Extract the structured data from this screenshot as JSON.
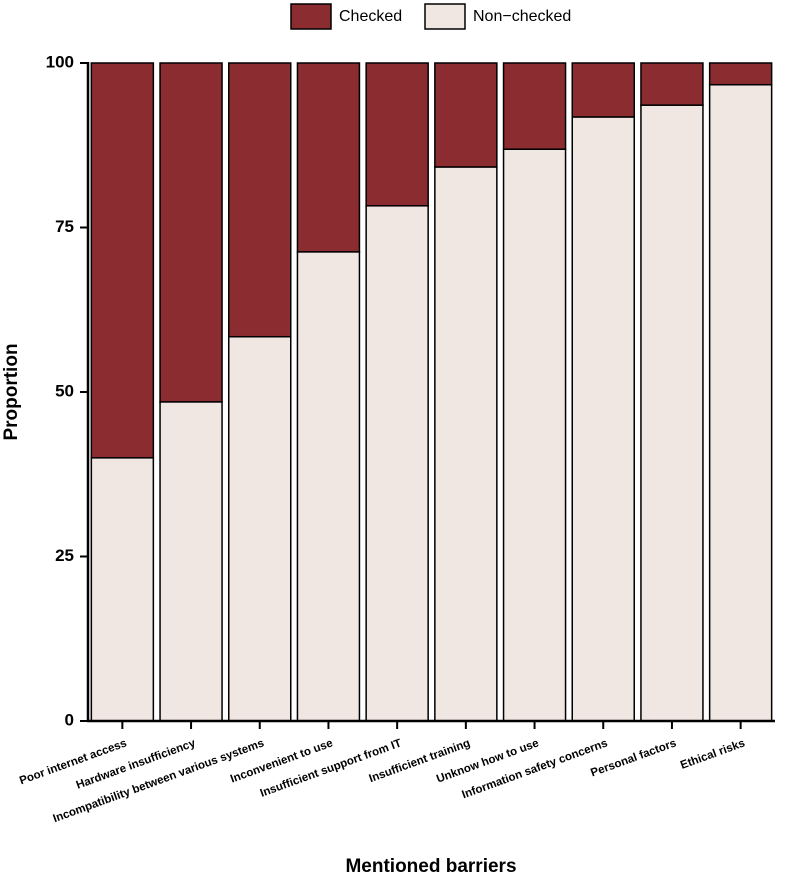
{
  "chart_data": {
    "type": "stacked_bar",
    "x_label": "Mentioned barriers",
    "y_label": "Proportion",
    "categories": [
      "Poor internet access",
      "Hardware insufficiency",
      "Incompatibility between various systems",
      "Inconvenient to use",
      "Insufficient support from IT",
      "Insufficient training",
      "Unknow how to use",
      "Information safety concerns",
      "Personal factors",
      "Ethical risks"
    ],
    "series": [
      {
        "name": "Checked",
        "color": "#8b2c31",
        "values": [
          60.0,
          51.5,
          41.6,
          28.7,
          21.7,
          15.8,
          13.1,
          8.2,
          6.4,
          3.3
        ]
      },
      {
        "name": "Non−checked",
        "color": "#f0e6e2",
        "values": [
          40.0,
          48.5,
          58.4,
          71.3,
          78.3,
          84.2,
          86.9,
          91.8,
          93.6,
          96.7
        ]
      }
    ],
    "ylim": [
      0,
      100
    ],
    "yticks": [
      0,
      25,
      50,
      75,
      100
    ],
    "grid": false,
    "legend": "top"
  }
}
